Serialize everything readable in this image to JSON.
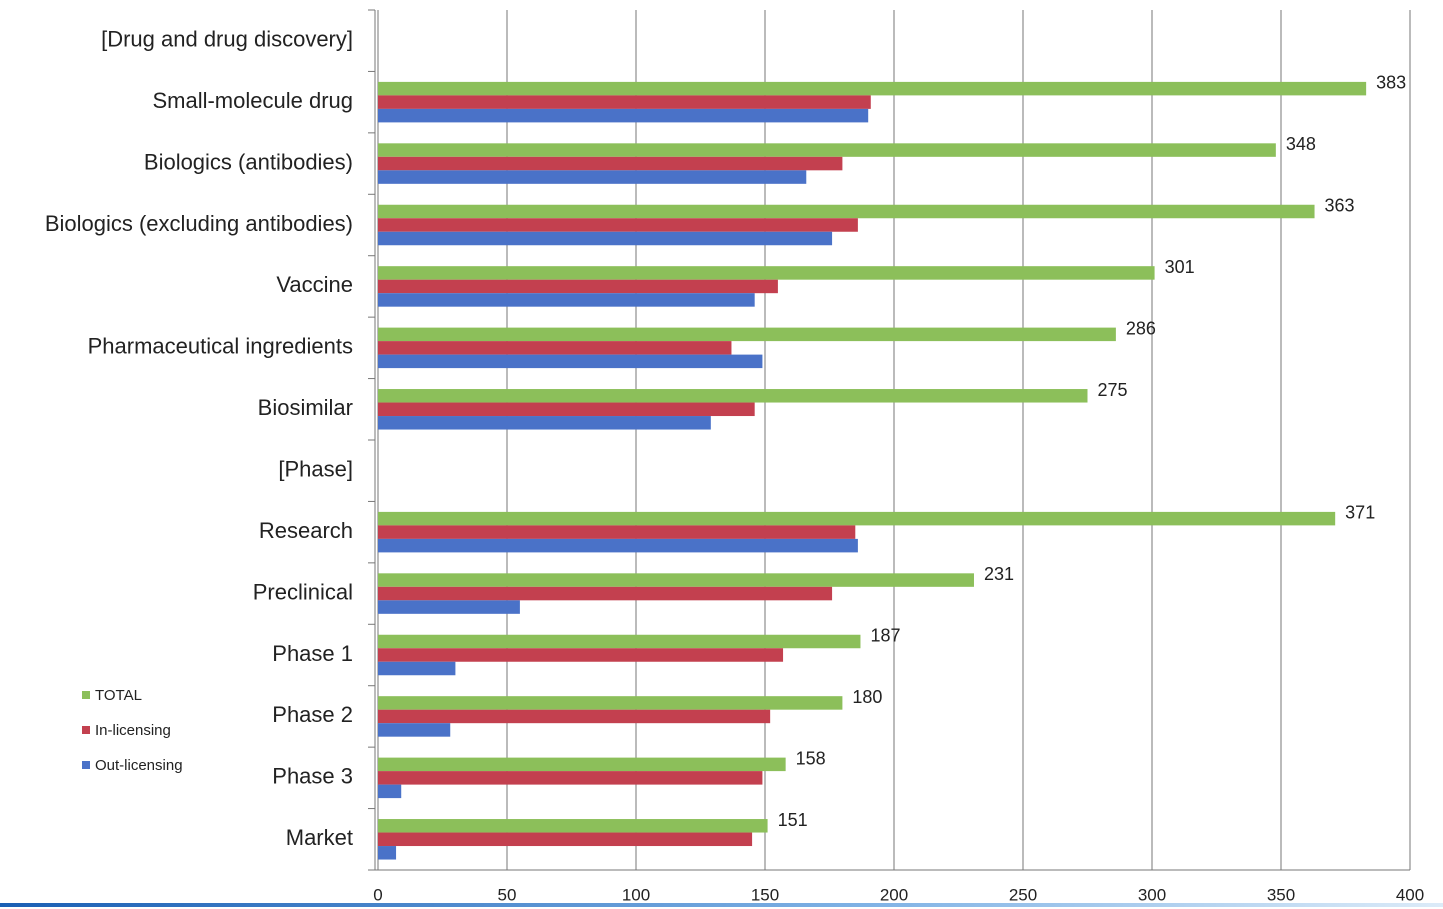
{
  "chart_data": {
    "type": "bar",
    "orientation": "horizontal",
    "categories": [
      "[Drug and drug discovery]",
      "Small-molecule drug",
      "Biologics (antibodies)",
      "Biologics (excluding antibodies)",
      "Vaccine",
      "Pharmaceutical ingredients",
      "Biosimilar",
      "[Phase]",
      "Research",
      "Preclinical",
      "Phase 1",
      "Phase 2",
      "Phase 3",
      "Market"
    ],
    "series": [
      {
        "name": "TOTAL",
        "color": "#8cbf5a",
        "values": [
          null,
          383,
          348,
          363,
          301,
          286,
          275,
          null,
          371,
          231,
          187,
          180,
          158,
          151
        ]
      },
      {
        "name": "In-licensing",
        "color": "#c3404f",
        "values": [
          null,
          191,
          180,
          186,
          155,
          137,
          146,
          null,
          185,
          176,
          157,
          152,
          149,
          145
        ]
      },
      {
        "name": "Out-licensing",
        "color": "#4a72c8",
        "values": [
          null,
          190,
          166,
          176,
          146,
          149,
          129,
          null,
          186,
          55,
          30,
          28,
          9,
          7
        ]
      }
    ],
    "xlim": [
      0,
      400
    ],
    "xticks": [
      0,
      50,
      100,
      150,
      200,
      250,
      300,
      350,
      400
    ],
    "grid": true,
    "legend": "lower left",
    "data_labels_series": "TOTAL"
  }
}
